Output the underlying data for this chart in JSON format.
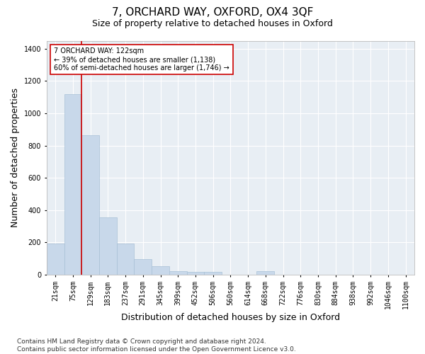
{
  "title": "7, ORCHARD WAY, OXFORD, OX4 3QF",
  "subtitle": "Size of property relative to detached houses in Oxford",
  "xlabel": "Distribution of detached houses by size in Oxford",
  "ylabel": "Number of detached properties",
  "bar_color": "#c8d8ea",
  "bar_edgecolor": "#a8c0d6",
  "vline_color": "#cc0000",
  "annotation_text": "7 ORCHARD WAY: 122sqm\n← 39% of detached houses are smaller (1,138)\n60% of semi-detached houses are larger (1,746) →",
  "annotation_box_facecolor": "#ffffff",
  "annotation_box_edgecolor": "#cc0000",
  "categories": [
    "21sqm",
    "75sqm",
    "129sqm",
    "183sqm",
    "237sqm",
    "291sqm",
    "345sqm",
    "399sqm",
    "452sqm",
    "506sqm",
    "560sqm",
    "614sqm",
    "668sqm",
    "722sqm",
    "776sqm",
    "830sqm",
    "884sqm",
    "938sqm",
    "992sqm",
    "1046sqm",
    "1100sqm"
  ],
  "values": [
    190,
    1120,
    865,
    355,
    190,
    95,
    50,
    22,
    17,
    17,
    0,
    0,
    20,
    0,
    0,
    0,
    0,
    0,
    0,
    0,
    0
  ],
  "ylim": [
    0,
    1450
  ],
  "yticks": [
    0,
    200,
    400,
    600,
    800,
    1000,
    1200,
    1400
  ],
  "vline_bin_index": 1.5,
  "background_color": "#ffffff",
  "plot_background": "#e8eef4",
  "grid_color": "#ffffff",
  "title_fontsize": 11,
  "subtitle_fontsize": 9,
  "axis_label_fontsize": 9,
  "tick_fontsize": 7,
  "annotation_fontsize": 7,
  "footer_fontsize": 6.5,
  "footer": "Contains HM Land Registry data © Crown copyright and database right 2024.\nContains public sector information licensed under the Open Government Licence v3.0."
}
